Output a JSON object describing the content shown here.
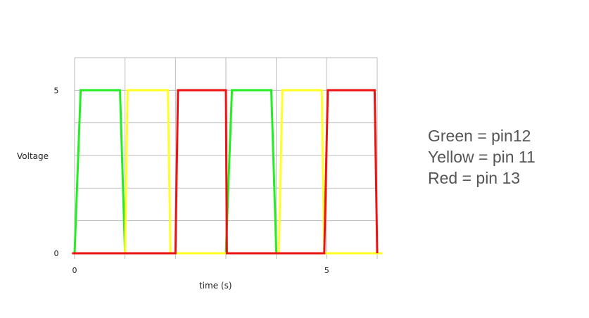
{
  "chart_data": {
    "type": "line",
    "ylabel": "Voltage",
    "xlabel": "time (s)",
    "x_ticks": [
      0,
      5
    ],
    "y_ticks": [
      0,
      5
    ],
    "xlim": [
      0,
      6
    ],
    "ylim": [
      0,
      6
    ],
    "grid": true,
    "series": [
      {
        "name": "Green",
        "color": "#22ee22",
        "x": [
          0,
          0.12,
          0.9,
          1.0,
          1.95,
          2.0,
          3.0,
          3.12,
          3.9,
          4.0,
          4.9,
          5.0,
          6.0
        ],
        "y": [
          0,
          5,
          5,
          0,
          0,
          0,
          0,
          5,
          5,
          0,
          0,
          0,
          0
        ]
      },
      {
        "name": "Yellow",
        "color": "#ffff22",
        "x": [
          -0.05,
          1.0,
          1.05,
          1.85,
          1.9,
          3.0,
          3.02,
          4.05,
          4.12,
          4.9,
          4.95,
          6.1
        ],
        "y": [
          0,
          0,
          5,
          5,
          0,
          0,
          0,
          0,
          5,
          5,
          0,
          0
        ]
      },
      {
        "name": "Red",
        "color": "#ee1111",
        "x": [
          -0.05,
          2.0,
          2.05,
          3.0,
          3.02,
          4.95,
          5.02,
          5.95,
          6.0
        ],
        "y": [
          0,
          0,
          5,
          5,
          0,
          0,
          5,
          5,
          0
        ]
      }
    ]
  },
  "legend": {
    "lines": [
      "Green = pin12",
      "Yellow = pin 11",
      "Red = pin 13"
    ]
  }
}
